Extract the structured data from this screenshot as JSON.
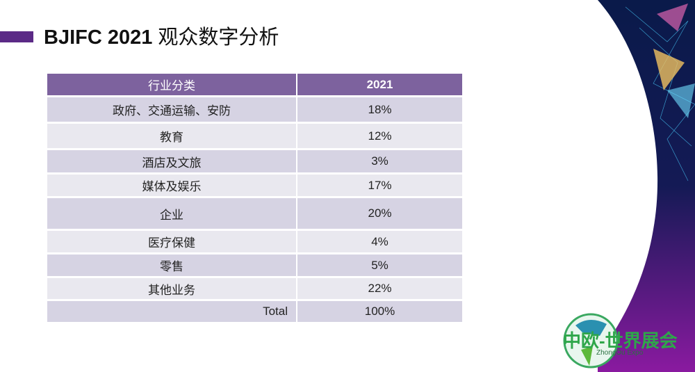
{
  "title": {
    "bold": "BJIFC 2021",
    "rest": "观众数字分析"
  },
  "table": {
    "headers": [
      "行业分类",
      "2021"
    ],
    "rows": [
      {
        "category": "政府、交通运输、安防",
        "value": "18%"
      },
      {
        "category": "教育",
        "value": "12%"
      },
      {
        "category": "酒店及文旅",
        "value": "3%"
      },
      {
        "category": "媒体及娱乐",
        "value": "17%"
      },
      {
        "category": "企业",
        "value": "20%"
      },
      {
        "category": "医疗保健",
        "value": "4%"
      },
      {
        "category": "零售",
        "value": "5%"
      },
      {
        "category": "其他业务",
        "value": "22%"
      }
    ],
    "total": {
      "label": "Total",
      "value": "100%"
    }
  },
  "logo": {
    "cn": "中欧-世界展会",
    "en": "ZhongOu Expo"
  },
  "colors": {
    "accent": "#5b2a86",
    "header": "#7d629e",
    "row_dark": "#d6d3e3",
    "row_light": "#e9e8ef"
  }
}
